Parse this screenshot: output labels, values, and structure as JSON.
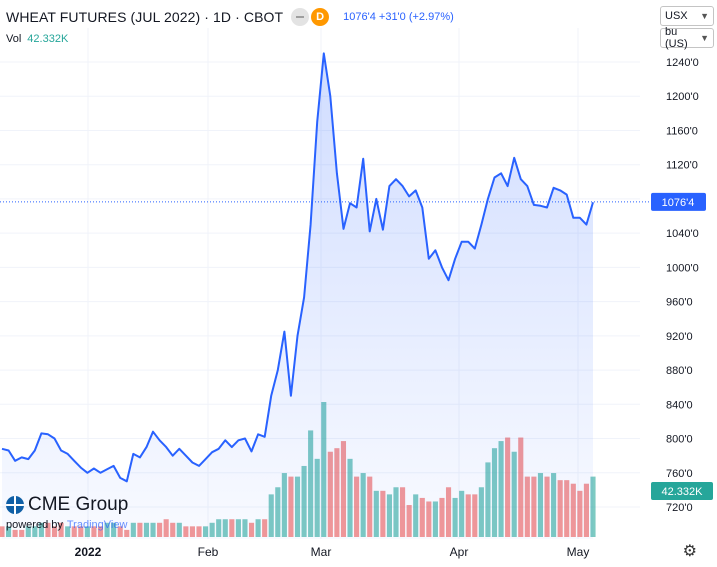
{
  "header": {
    "title": "WHEAT FUTURES (JUL 2022) · 1D · CBOT",
    "badge": "D",
    "price_change": "1076'4 +31'0 (+2.97%)"
  },
  "volume": {
    "label": "Vol",
    "value": "42.332K"
  },
  "controls": {
    "currency": "USX",
    "unit": "bu (US)"
  },
  "branding": {
    "logo": "CME Group",
    "powered_by": "powered by",
    "provider": "TradingView"
  },
  "colors": {
    "line": "#2962ff",
    "vol_up": "#26a69a",
    "vol_down": "#ef5350",
    "price_tag": "#2962ff",
    "vol_tag": "#26a69a"
  },
  "chart_data": {
    "type": "area",
    "xlabels": [
      "2022",
      "Feb",
      "Mar",
      "Apr",
      "May"
    ],
    "ytick_labels": [
      "1240'0",
      "1200'0",
      "1160'0",
      "1120'0",
      "1080'0",
      "1040'0",
      "1000'0",
      "960'0",
      "920'0",
      "880'0",
      "840'0",
      "800'0",
      "760'0",
      "720'0"
    ],
    "yticks": [
      1240,
      1200,
      1160,
      1120,
      1080,
      1040,
      1000,
      960,
      920,
      880,
      840,
      800,
      760,
      720
    ],
    "last_price_label": "1076'4",
    "last_price": 1076.5,
    "last_volume_label": "42.332K",
    "ylim": [
      700,
      1265
    ],
    "price": [
      788,
      786,
      774,
      778,
      776,
      786,
      806,
      805,
      800,
      786,
      782,
      774,
      766,
      760,
      765,
      760,
      764,
      768,
      754,
      750,
      782,
      778,
      790,
      808,
      798,
      790,
      780,
      788,
      780,
      772,
      768,
      776,
      784,
      788,
      798,
      790,
      798,
      800,
      785,
      805,
      802,
      850,
      880,
      925,
      850,
      920,
      965,
      1050,
      1170,
      1250,
      1200,
      1110,
      1045,
      1075,
      1070,
      1127,
      1042,
      1080,
      1044,
      1095,
      1103,
      1095,
      1083,
      1090,
      1070,
      1010,
      1020,
      1000,
      985,
      1010,
      1030,
      1030,
      1022,
      1050,
      1080,
      1105,
      1110,
      1095,
      1128,
      1103,
      1095,
      1073,
      1072,
      1070,
      1093,
      1090,
      1085,
      1058,
      1058,
      1050,
      1076
    ],
    "volume": [
      3,
      3,
      2,
      2,
      3,
      3,
      4,
      4,
      3,
      4,
      3,
      3,
      3,
      3,
      3,
      3,
      4,
      4,
      3,
      2,
      4,
      4,
      4,
      4,
      4,
      5,
      4,
      4,
      3,
      3,
      3,
      3,
      4,
      5,
      5,
      5,
      5,
      5,
      4,
      5,
      5,
      12,
      14,
      18,
      17,
      17,
      20,
      30,
      22,
      38,
      24,
      25,
      27,
      22,
      17,
      18,
      17,
      13,
      13,
      12,
      14,
      14,
      9,
      12,
      11,
      10,
      10,
      11,
      14,
      11,
      13,
      12,
      12,
      14,
      21,
      25,
      27,
      28,
      24,
      28,
      17,
      17,
      18,
      17,
      18,
      16,
      16,
      15,
      13,
      15,
      17
    ],
    "volume_up": [
      0,
      1,
      0,
      0,
      1,
      1,
      1,
      0,
      0,
      0,
      1,
      0,
      0,
      1,
      0,
      0,
      1,
      1,
      0,
      0,
      1,
      0,
      1,
      1,
      0,
      0,
      0,
      1,
      0,
      0,
      0,
      1,
      1,
      1,
      1,
      0,
      1,
      1,
      0,
      1,
      0,
      1,
      1,
      1,
      0,
      1,
      1,
      1,
      1,
      1,
      0,
      0,
      0,
      1,
      0,
      1,
      0,
      1,
      0,
      1,
      1,
      0,
      0,
      1,
      0,
      0,
      1,
      0,
      0,
      1,
      1,
      0,
      0,
      1,
      1,
      1,
      1,
      0,
      1,
      0,
      0,
      0,
      1,
      0,
      1,
      0,
      0,
      0,
      0,
      0,
      1
    ]
  }
}
